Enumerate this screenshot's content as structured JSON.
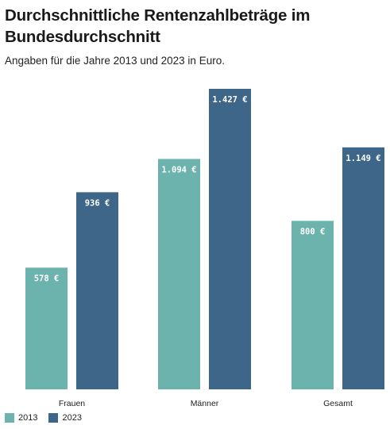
{
  "title": "Durchschnittliche Rentenzahlbeträge im Bundesdurchschnitt",
  "subtitle": "Angaben für die Jahre 2013 und 2023 in Euro.",
  "colors": {
    "s2013": "#6cb3ad",
    "s2023": "#3e6688",
    "label": "#ffffff",
    "axis": "#222222"
  },
  "chart_data": {
    "type": "bar",
    "title": "Durchschnittliche Rentenzahlbeträge im Bundesdurchschnitt",
    "subtitle": "Angaben für die Jahre 2013 und 2023 in Euro.",
    "categories": [
      "Frauen",
      "Männer",
      "Gesamt"
    ],
    "series": [
      {
        "name": "2013",
        "values": [
          578,
          1094,
          800
        ],
        "labels": [
          "578 €",
          "1.094 €",
          "800 €"
        ]
      },
      {
        "name": "2023",
        "values": [
          936,
          1427,
          1149
        ],
        "labels": [
          "936 €",
          "1.427 €",
          "1.149 €"
        ]
      }
    ],
    "xlabel": "",
    "ylabel": "",
    "ylim": [
      0,
      1427
    ],
    "grid": false,
    "legend": "bottom-left"
  }
}
